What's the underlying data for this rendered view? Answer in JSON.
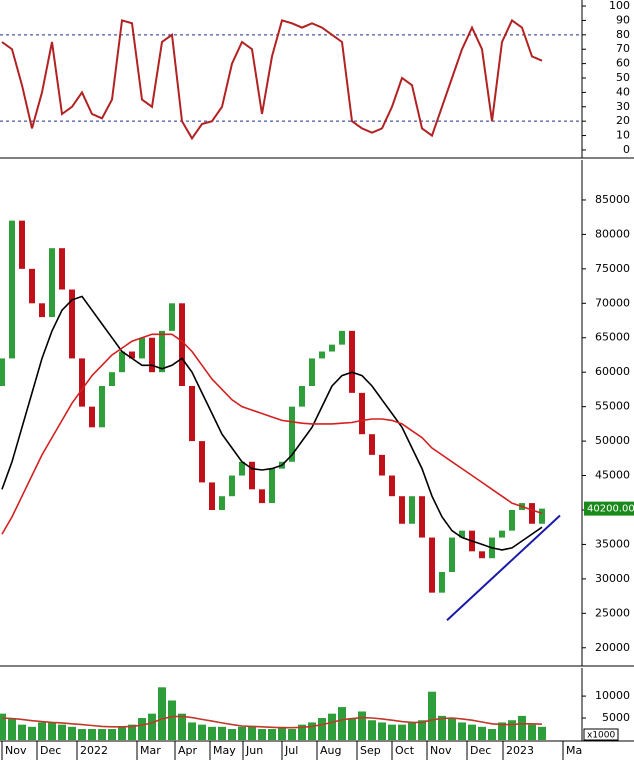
{
  "chart_data": [
    {
      "type": "line",
      "xlim": [
        -0.2,
        58
      ],
      "ylim": [
        -4.9,
        104.2
      ],
      "yticks": [
        0,
        10,
        20,
        30,
        40,
        50,
        60,
        70,
        80,
        90,
        100
      ],
      "hlines": [
        80,
        20
      ],
      "hline_color": "#1f2f8f",
      "series": [
        {
          "color": "#b22222",
          "values": [
            75,
            70,
            45,
            15,
            40,
            75,
            25,
            30,
            40,
            25,
            22,
            35,
            90,
            88,
            35,
            30,
            75,
            80,
            20,
            8,
            18,
            20,
            30,
            60,
            75,
            70,
            25,
            65,
            90,
            88,
            85,
            88,
            85,
            80,
            75,
            20,
            15,
            12,
            15,
            30,
            50,
            45,
            15,
            10,
            30,
            50,
            70,
            85,
            70,
            20,
            75,
            90,
            85,
            65,
            62
          ]
        }
      ]
    },
    {
      "type": "candlestick",
      "xlim": [
        -0.2,
        58
      ],
      "ylim": [
        17500,
        90800
      ],
      "yticks": [
        20000,
        25000,
        30000,
        35000,
        40000,
        45000,
        50000,
        55000,
        60000,
        65000,
        70000,
        75000,
        80000,
        85000
      ],
      "up_color": "#2e9e3a",
      "down_color": "#c0101a",
      "open": [
        58000,
        62000,
        82000,
        75000,
        70000,
        68000,
        78000,
        72000,
        62000,
        55000,
        52000,
        58000,
        60000,
        63000,
        62000,
        65000,
        60000,
        66000,
        70000,
        58000,
        50000,
        44000,
        40000,
        42000,
        45000,
        47000,
        43000,
        41000,
        46000,
        47000,
        55000,
        58000,
        62000,
        63000,
        64000,
        66000,
        57000,
        51000,
        48000,
        45000,
        42000,
        38000,
        42000,
        36000,
        28000,
        31000,
        36000,
        37000,
        34000,
        33000,
        36000,
        37000,
        40000,
        41000,
        38000
      ],
      "close": [
        62000,
        82000,
        75000,
        70000,
        68000,
        78000,
        72000,
        62000,
        55000,
        52000,
        58000,
        60000,
        63000,
        62000,
        65000,
        60000,
        66000,
        70000,
        58000,
        50000,
        44000,
        40000,
        42000,
        45000,
        47000,
        43000,
        41000,
        46000,
        47000,
        55000,
        58000,
        62000,
        63000,
        64000,
        66000,
        57000,
        51000,
        48000,
        45000,
        42000,
        38000,
        42000,
        36000,
        28000,
        31000,
        36000,
        37000,
        34000,
        33000,
        36000,
        37000,
        40000,
        41000,
        38000,
        40200
      ],
      "series": [
        {
          "color": "#000000",
          "values": [
            43000,
            47000,
            52000,
            57000,
            62000,
            66000,
            69000,
            70500,
            71000,
            69000,
            67000,
            65000,
            63000,
            62000,
            61000,
            61000,
            60500,
            61000,
            62000,
            60000,
            57000,
            54000,
            51000,
            49000,
            47000,
            46000,
            45800,
            46000,
            46500,
            48000,
            50000,
            52000,
            55000,
            58000,
            59500,
            60000,
            59500,
            58000,
            56000,
            54000,
            52000,
            49000,
            46000,
            42000,
            39000,
            37000,
            36000,
            35500,
            35000,
            34500,
            34200,
            34500,
            35500,
            36500,
            37500
          ]
        },
        {
          "color": "#d42020",
          "values": [
            36500,
            39000,
            42000,
            45000,
            48000,
            50500,
            53000,
            55500,
            57500,
            59500,
            61000,
            62500,
            63500,
            64500,
            65000,
            65500,
            65500,
            65500,
            64500,
            63000,
            61000,
            59000,
            57500,
            56000,
            55000,
            54500,
            54000,
            53500,
            53000,
            52800,
            52600,
            52500,
            52500,
            52500,
            52600,
            52700,
            53000,
            53200,
            53200,
            53000,
            52500,
            51500,
            50500,
            49000,
            48000,
            47000,
            46000,
            45000,
            44000,
            43000,
            42000,
            41000,
            40500,
            40000,
            39500
          ]
        }
      ],
      "trendline": {
        "color": "#1a1aaa",
        "x": [
          44.5,
          55.8
        ],
        "values": [
          24000,
          39200
        ]
      },
      "last_price": {
        "value": 40200,
        "label": "40200.00",
        "color": "#1a8a1a"
      }
    },
    {
      "type": "bar",
      "xlim": [
        -0.2,
        58
      ],
      "ylim": [
        0,
        16400
      ],
      "yticks": [
        5000,
        10000
      ],
      "unit_label": "x1000",
      "color": "#2e9e3a",
      "values": [
        6000,
        5000,
        3500,
        3000,
        4000,
        4000,
        3500,
        3000,
        2500,
        2500,
        2500,
        2500,
        3000,
        3500,
        5000,
        6000,
        12000,
        9000,
        6000,
        4000,
        3500,
        3000,
        3000,
        2500,
        3000,
        3000,
        2500,
        2500,
        3000,
        2500,
        3500,
        4000,
        5000,
        6000,
        7500,
        5000,
        6500,
        4500,
        4000,
        3500,
        3500,
        4000,
        4500,
        11000,
        5500,
        5000,
        4000,
        3500,
        3000,
        2500,
        4000,
        4500,
        5500,
        3500,
        3000
      ],
      "series": [
        {
          "color": "#c0392b",
          "values": [
            5000,
            4900,
            4700,
            4400,
            4200,
            4000,
            3900,
            3700,
            3500,
            3300,
            3100,
            3000,
            3000,
            3100,
            3400,
            3900,
            4800,
            5300,
            5400,
            5100,
            4700,
            4300,
            3900,
            3500,
            3200,
            3100,
            3000,
            2900,
            2800,
            2800,
            2900,
            3100,
            3500,
            4000,
            4600,
            4900,
            5100,
            5000,
            4800,
            4500,
            4200,
            4000,
            4000,
            4600,
            4900,
            5000,
            4800,
            4500,
            4100,
            3700,
            3500,
            3500,
            3700,
            3700,
            3600
          ]
        }
      ],
      "xticks": [
        {
          "value": 0,
          "label": "Nov"
        },
        {
          "value": 3.5,
          "label": "Dec"
        },
        {
          "value": 7.5,
          "label": "2022"
        },
        {
          "value": 13.5,
          "label": "Mar"
        },
        {
          "value": 17.3,
          "label": "Apr"
        },
        {
          "value": 20.8,
          "label": "May"
        },
        {
          "value": 24.1,
          "label": "Jun"
        },
        {
          "value": 28,
          "label": "Jul"
        },
        {
          "value": 31.5,
          "label": "Aug"
        },
        {
          "value": 35.5,
          "label": "Sep"
        },
        {
          "value": 39,
          "label": "Oct"
        },
        {
          "value": 42.5,
          "label": "Nov"
        },
        {
          "value": 46.5,
          "label": "Dec"
        },
        {
          "value": 50.1,
          "label": "2023"
        },
        {
          "value": 56.1,
          "label": "Ma"
        }
      ]
    }
  ]
}
